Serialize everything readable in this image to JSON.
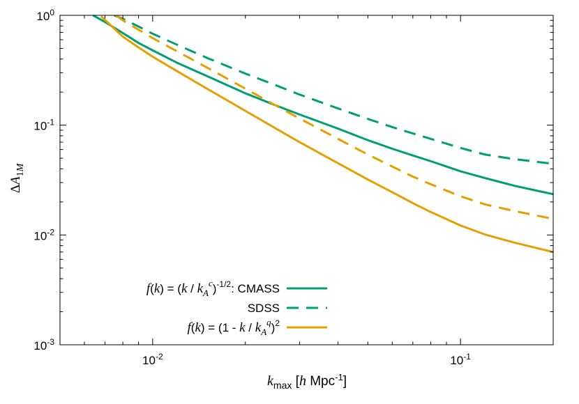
{
  "chart_data": {
    "type": "line",
    "x_scale": "log",
    "y_scale": "log",
    "xlim": [
      0.005,
      0.2
    ],
    "ylim": [
      0.001,
      1
    ],
    "grid": false,
    "legend_position": "bottom-left",
    "xlabel": {
      "var": "k",
      "sub": "max",
      "open": " [",
      "unit_var": "h",
      "unit_text": " Mpc",
      "unit_sup": "-1",
      "close": "]"
    },
    "ylabel": {
      "delta": "Δ",
      "var": "A",
      "sub1": "1",
      "sub2": "M"
    },
    "x_ticks": [
      {
        "value": 0.01,
        "base": "10",
        "exp": "-2"
      },
      {
        "value": 0.1,
        "base": "10",
        "exp": "-1"
      }
    ],
    "y_ticks": [
      {
        "value": 1,
        "base": "10",
        "exp": "0"
      },
      {
        "value": 0.1,
        "base": "10",
        "exp": "-1"
      },
      {
        "value": 0.01,
        "base": "10",
        "exp": "-2"
      },
      {
        "value": 0.001,
        "base": "10",
        "exp": "-3"
      }
    ],
    "series": [
      {
        "name": "CMASS",
        "group": "power-law",
        "color": "#009e73",
        "dash": "solid",
        "x": [
          0.0064,
          0.007,
          0.008,
          0.009,
          0.01,
          0.012,
          0.015,
          0.02,
          0.025,
          0.03,
          0.04,
          0.05,
          0.06,
          0.07,
          0.08,
          0.1,
          0.12,
          0.15,
          0.2
        ],
        "y": [
          1.0,
          0.87,
          0.69,
          0.56,
          0.48,
          0.37,
          0.28,
          0.195,
          0.152,
          0.125,
          0.093,
          0.073,
          0.061,
          0.053,
          0.047,
          0.038,
          0.033,
          0.028,
          0.0235
        ]
      },
      {
        "name": "SDSS",
        "group": "power-law",
        "color": "#009e73",
        "dash": "dashed",
        "x": [
          0.0075,
          0.008,
          0.009,
          0.01,
          0.012,
          0.015,
          0.02,
          0.025,
          0.03,
          0.04,
          0.05,
          0.06,
          0.07,
          0.08,
          0.1,
          0.12,
          0.15,
          0.2
        ],
        "y": [
          1.0,
          0.93,
          0.79,
          0.68,
          0.54,
          0.41,
          0.295,
          0.232,
          0.19,
          0.142,
          0.114,
          0.096,
          0.084,
          0.075,
          0.062,
          0.054,
          0.049,
          0.0445
        ]
      },
      {
        "name": "CMASS",
        "group": "quadratic",
        "color": "#e69f00",
        "dash": "solid",
        "x": [
          0.0068,
          0.008,
          0.009,
          0.01,
          0.012,
          0.015,
          0.02,
          0.025,
          0.03,
          0.04,
          0.05,
          0.06,
          0.07,
          0.08,
          0.1,
          0.12,
          0.15,
          0.2
        ],
        "y": [
          0.98,
          0.64,
          0.51,
          0.42,
          0.31,
          0.215,
          0.135,
          0.094,
          0.07,
          0.045,
          0.032,
          0.0245,
          0.0195,
          0.0162,
          0.0122,
          0.0101,
          0.0085,
          0.007
        ]
      },
      {
        "name": "SDSS",
        "group": "quadratic",
        "color": "#e69f00",
        "dash": "dashed",
        "x": [
          0.0076,
          0.008,
          0.009,
          0.01,
          0.012,
          0.015,
          0.02,
          0.025,
          0.03,
          0.04,
          0.05,
          0.06,
          0.07,
          0.08,
          0.1,
          0.12,
          0.15,
          0.2
        ],
        "y": [
          1.0,
          0.9,
          0.74,
          0.62,
          0.47,
          0.335,
          0.215,
          0.152,
          0.115,
          0.075,
          0.054,
          0.042,
          0.034,
          0.029,
          0.0225,
          0.019,
          0.0165,
          0.014
        ]
      }
    ],
    "legend": [
      {
        "segments": [
          {
            "t": "f",
            "s": "it"
          },
          {
            "t": "(",
            "s": "sans"
          },
          {
            "t": "k",
            "s": "it"
          },
          {
            "t": ") = (",
            "s": "sans"
          },
          {
            "t": "k",
            "s": "it"
          },
          {
            "t": " / ",
            "s": "sans"
          },
          {
            "t": "k",
            "s": "it"
          },
          {
            "t": "A",
            "s": "it-sub"
          },
          {
            "t": "c",
            "s": "it-sup-high"
          },
          {
            "t": ")",
            "s": "sans"
          },
          {
            "t": "-1/2",
            "s": "sup"
          },
          {
            "t": ": CMASS",
            "s": "sans"
          }
        ],
        "color": "#009e73",
        "dash": "solid"
      },
      {
        "segments": [
          {
            "t": "SDSS",
            "s": "sans"
          }
        ],
        "color": "#009e73",
        "dash": "dashed"
      },
      {
        "segments": [
          {
            "t": "f",
            "s": "it"
          },
          {
            "t": "(",
            "s": "sans"
          },
          {
            "t": "k",
            "s": "it"
          },
          {
            "t": ") = (1 - ",
            "s": "sans"
          },
          {
            "t": "k",
            "s": "it"
          },
          {
            "t": " / ",
            "s": "sans"
          },
          {
            "t": "k",
            "s": "it"
          },
          {
            "t": "A",
            "s": "it-sub"
          },
          {
            "t": "q",
            "s": "it-sup-high"
          },
          {
            "t": ")",
            "s": "sans"
          },
          {
            "t": "2",
            "s": "sup"
          }
        ],
        "color": "#e69f00",
        "dash": "solid"
      }
    ]
  }
}
